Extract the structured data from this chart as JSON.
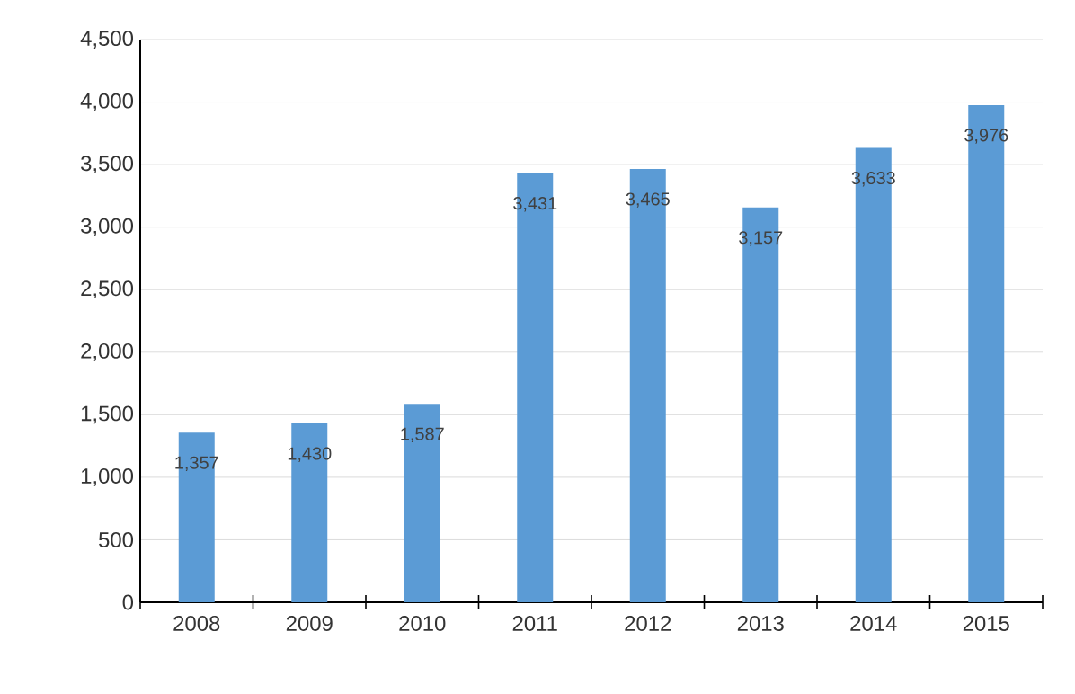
{
  "chart_data": {
    "type": "bar",
    "categories": [
      "2008",
      "2009",
      "2010",
      "2011",
      "2012",
      "2013",
      "2014",
      "2015"
    ],
    "values": [
      1357,
      1430,
      1587,
      3431,
      3465,
      3157,
      3633,
      3976
    ],
    "value_labels": [
      "1,357",
      "1,430",
      "1,587",
      "3,431",
      "3,465",
      "3,157",
      "3,633",
      "3,976"
    ],
    "color": "#5b9bd5",
    "ylim": [
      0,
      4500
    ],
    "yticks": [
      0,
      500,
      {
        "value": 1000,
        "label": "1,000"
      },
      {
        "value": 1500,
        "label": "1,500"
      },
      {
        "value": 2000,
        "label": "2,000"
      },
      {
        "value": 2500,
        "label": "2,500"
      },
      {
        "value": 3000,
        "label": "3,000"
      },
      {
        "value": 3500,
        "label": "3,500"
      },
      {
        "value": 4000,
        "label": "4,000"
      },
      {
        "value": 4500,
        "label": "4,500"
      }
    ],
    "grid": "y"
  }
}
